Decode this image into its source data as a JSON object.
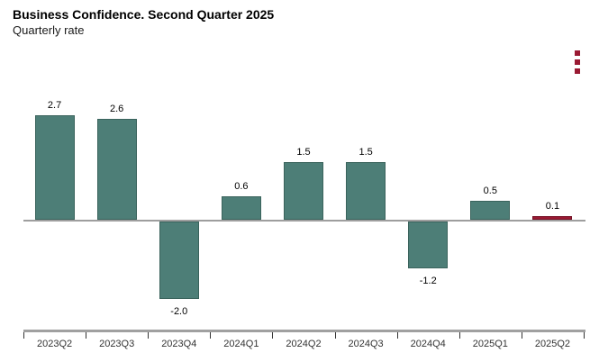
{
  "header": {
    "title": "Business Confidence. Second Quarter 2025",
    "subtitle": "Quarterly rate"
  },
  "context_menu": {
    "icon": "kebab-menu-icon",
    "color": "#9a1a33"
  },
  "chart_data": {
    "type": "bar",
    "title": "Business Confidence. Second Quarter 2025",
    "subtitle": "Quarterly rate",
    "categories": [
      "2023Q2",
      "2023Q3",
      "2023Q4",
      "2024Q1",
      "2024Q2",
      "2024Q3",
      "2024Q4",
      "2025Q1",
      "2025Q2"
    ],
    "values": [
      2.7,
      2.6,
      -2.0,
      0.6,
      1.5,
      1.5,
      -1.2,
      0.5,
      0.1
    ],
    "labels": [
      "2.7",
      "2.6",
      "-2.0",
      "0.6",
      "1.5",
      "1.5",
      "-1.2",
      "0.5",
      "0.1"
    ],
    "point_colors": [
      "#4d7e77",
      "#4d7e77",
      "#4d7e77",
      "#4d7e77",
      "#4d7e77",
      "#4d7e77",
      "#4d7e77",
      "#4d7e77",
      "#9a1a33"
    ],
    "point_border_colors": [
      "#3a635c",
      "#3a635c",
      "#3a635c",
      "#3a635c",
      "#3a635c",
      "#3a635c",
      "#3a635c",
      "#3a635c",
      "#741125"
    ],
    "bar_color": "#4d7e77",
    "highlight_color": "#9a1a33",
    "axis_line_color": "#a0a0a0",
    "zero_line_color": "#9e9e9e",
    "xlabel": "",
    "ylabel": "",
    "ylim": [
      -2.5,
      3.0
    ],
    "grid": false,
    "legend": false,
    "data_labels": true
  }
}
